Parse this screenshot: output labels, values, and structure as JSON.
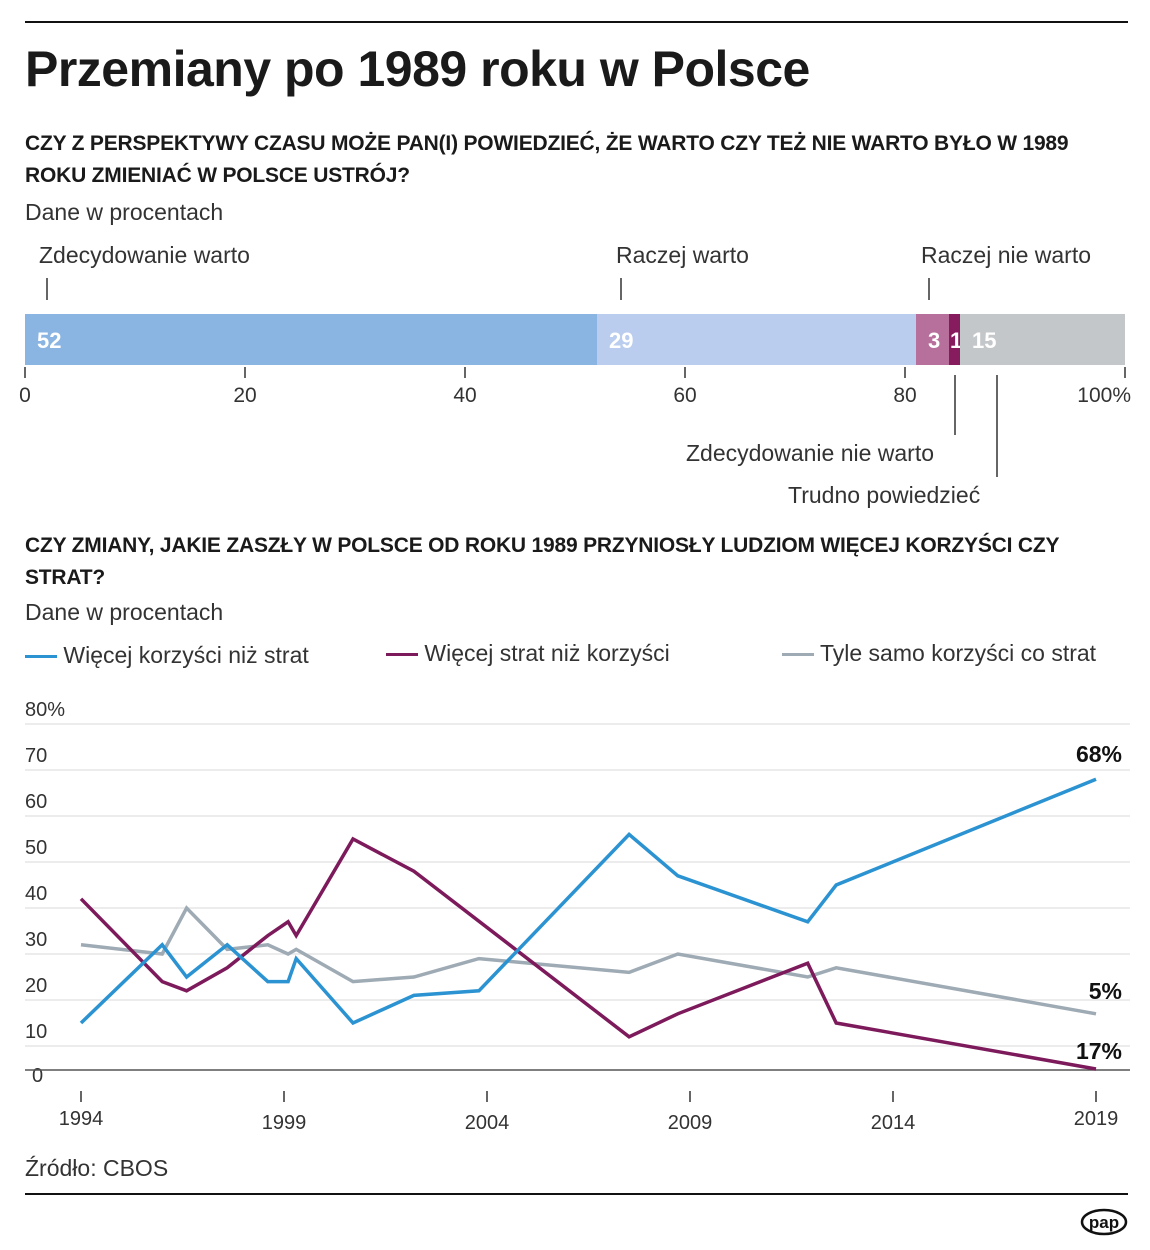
{
  "title": "Przemiany po 1989 roku w Polsce",
  "source": "Źródło: CBOS",
  "logo": "pap",
  "colors": {
    "blue": "#2b93d1",
    "purple": "#7d1a5b",
    "gray": "#9eaab4"
  },
  "chart_data": [
    {
      "type": "bar",
      "orientation": "horizontal-stacked",
      "title": "CZY Z PERSPEKTYWY CZASU MOŻE PAN(I) POWIEDZIEĆ, ŻE WARTO CZY TEŻ NIE WARTO BYŁO W 1989 ROKU ZMIENIAĆ W POLSCE USTRÓJ?",
      "subtitle": "Dane w procentach",
      "xlim": [
        0,
        100
      ],
      "ticks": [
        "0",
        "20",
        "40",
        "60",
        "80",
        "100%"
      ],
      "segments": [
        {
          "name": "Zdecydowanie warto",
          "value": 52,
          "color": "#8ab4e1"
        },
        {
          "name": "Raczej warto",
          "value": 29,
          "color": "#bacdee"
        },
        {
          "name": "Raczej nie warto",
          "value": 3,
          "color": "#b7709b"
        },
        {
          "name": "Zdecydowanie nie warto",
          "value": 1,
          "color": "#861c5e"
        },
        {
          "name": "Trudno powiedzieć",
          "value": 15,
          "color": "#c4c7ca"
        }
      ]
    },
    {
      "type": "line",
      "title": "CZY ZMIANY, JAKIE ZASZŁY W POLSCE OD ROKU 1989 PRZYNIOSŁY LUDZIOM WIĘCEJ KORZYŚCI CZY STRAT?",
      "subtitle": "Dane w procentach",
      "ylim": [
        0,
        80
      ],
      "yticks": [
        "0",
        "10",
        "20",
        "30",
        "40",
        "50",
        "60",
        "70",
        "80%"
      ],
      "xticks": [
        "1994",
        "1999",
        "2004",
        "2009",
        "2014",
        "2019"
      ],
      "grid": true,
      "legend": "top",
      "series": [
        {
          "name": "Więcej korzyści niż strat",
          "color": "#2b93d1",
          "end_label": "68%",
          "x": [
            1994,
            1996,
            1996.6,
            1997.6,
            1998.6,
            1999.1,
            1999.3,
            2000.7,
            2002.2,
            2003.8,
            2007.5,
            2008.7,
            2011.9,
            2012.6,
            2019
          ],
          "y": [
            15,
            32,
            25,
            32,
            24,
            24,
            29,
            15,
            21,
            22,
            56,
            47,
            37,
            45,
            68
          ]
        },
        {
          "name": "Więcej strat niż korzyści",
          "color": "#7d1a5b",
          "end_label": "5%",
          "x": [
            1994,
            1996,
            1996.6,
            1997.6,
            1998.6,
            1999.1,
            1999.3,
            2000.7,
            2002.2,
            2007.5,
            2008.7,
            2011.9,
            2012.6,
            2019
          ],
          "y": [
            42,
            24,
            22,
            27,
            34,
            37,
            34,
            55,
            48,
            12,
            17,
            28,
            15,
            5
          ]
        },
        {
          "name": "Tyle samo korzyści co strat",
          "color": "#9eaab4",
          "end_label": "17%",
          "x": [
            1994,
            1996,
            1996.6,
            1997.6,
            1998.6,
            1999.1,
            1999.3,
            2000.7,
            2002.2,
            2003.8,
            2007.5,
            2008.7,
            2011.9,
            2012.6,
            2019
          ],
          "y": [
            32,
            30,
            40,
            31,
            32,
            30,
            31,
            24,
            25,
            29,
            26,
            30,
            25,
            27,
            17
          ]
        }
      ]
    }
  ]
}
